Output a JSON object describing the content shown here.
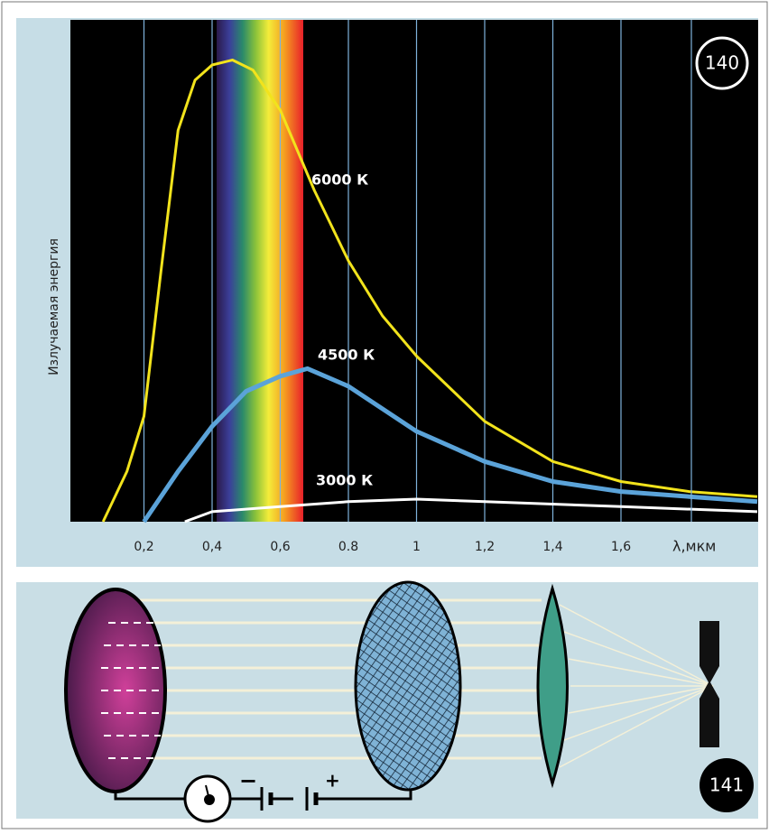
{
  "chart_data": {
    "type": "line",
    "figure_number": "140",
    "y_axis_label": "Излучаемая энергия",
    "x_axis_label": "λ,мкм",
    "xlim": [
      0,
      2.0
    ],
    "ylim": [
      0,
      100
    ],
    "xticks": [
      {
        "value": 0.2,
        "label": "0,2"
      },
      {
        "value": 0.4,
        "label": "0,4"
      },
      {
        "value": 0.6,
        "label": "0,6"
      },
      0.8,
      1,
      {
        "value": 1.2,
        "label": "1,2"
      },
      {
        "value": 1.4,
        "label": "1,4"
      },
      {
        "value": 1.6,
        "label": "1,6"
      }
    ],
    "grid": true,
    "series": [
      {
        "name": "6000 К",
        "color": "#f2e31c",
        "x": [
          0.08,
          0.15,
          0.2,
          0.25,
          0.3,
          0.35,
          0.4,
          0.46,
          0.52,
          0.6,
          0.7,
          0.8,
          0.9,
          1.0,
          1.2,
          1.4,
          1.6,
          1.8,
          2.0
        ],
        "values": [
          0,
          10,
          21,
          50,
          78,
          88,
          91,
          92,
          90,
          82,
          66,
          52,
          41,
          33,
          20,
          12,
          8,
          6,
          5
        ]
      },
      {
        "name": "4500 К",
        "color": "#5ba3d9",
        "x": [
          0.2,
          0.3,
          0.4,
          0.5,
          0.6,
          0.68,
          0.8,
          1.0,
          1.2,
          1.4,
          1.6,
          2.0
        ],
        "values": [
          0,
          10,
          19,
          26,
          29,
          30.5,
          27,
          18,
          12,
          8,
          6,
          4
        ]
      },
      {
        "name": "3000 К",
        "color": "#ffffff",
        "x": [
          0.32,
          0.4,
          0.6,
          0.8,
          1.0,
          1.2,
          1.6,
          2.0
        ],
        "values": [
          0,
          2,
          3,
          4,
          4.5,
          4,
          3,
          2
        ]
      }
    ]
  },
  "diagram": {
    "figure_number": "141",
    "minus_sign": "−",
    "plus_sign": "+"
  }
}
